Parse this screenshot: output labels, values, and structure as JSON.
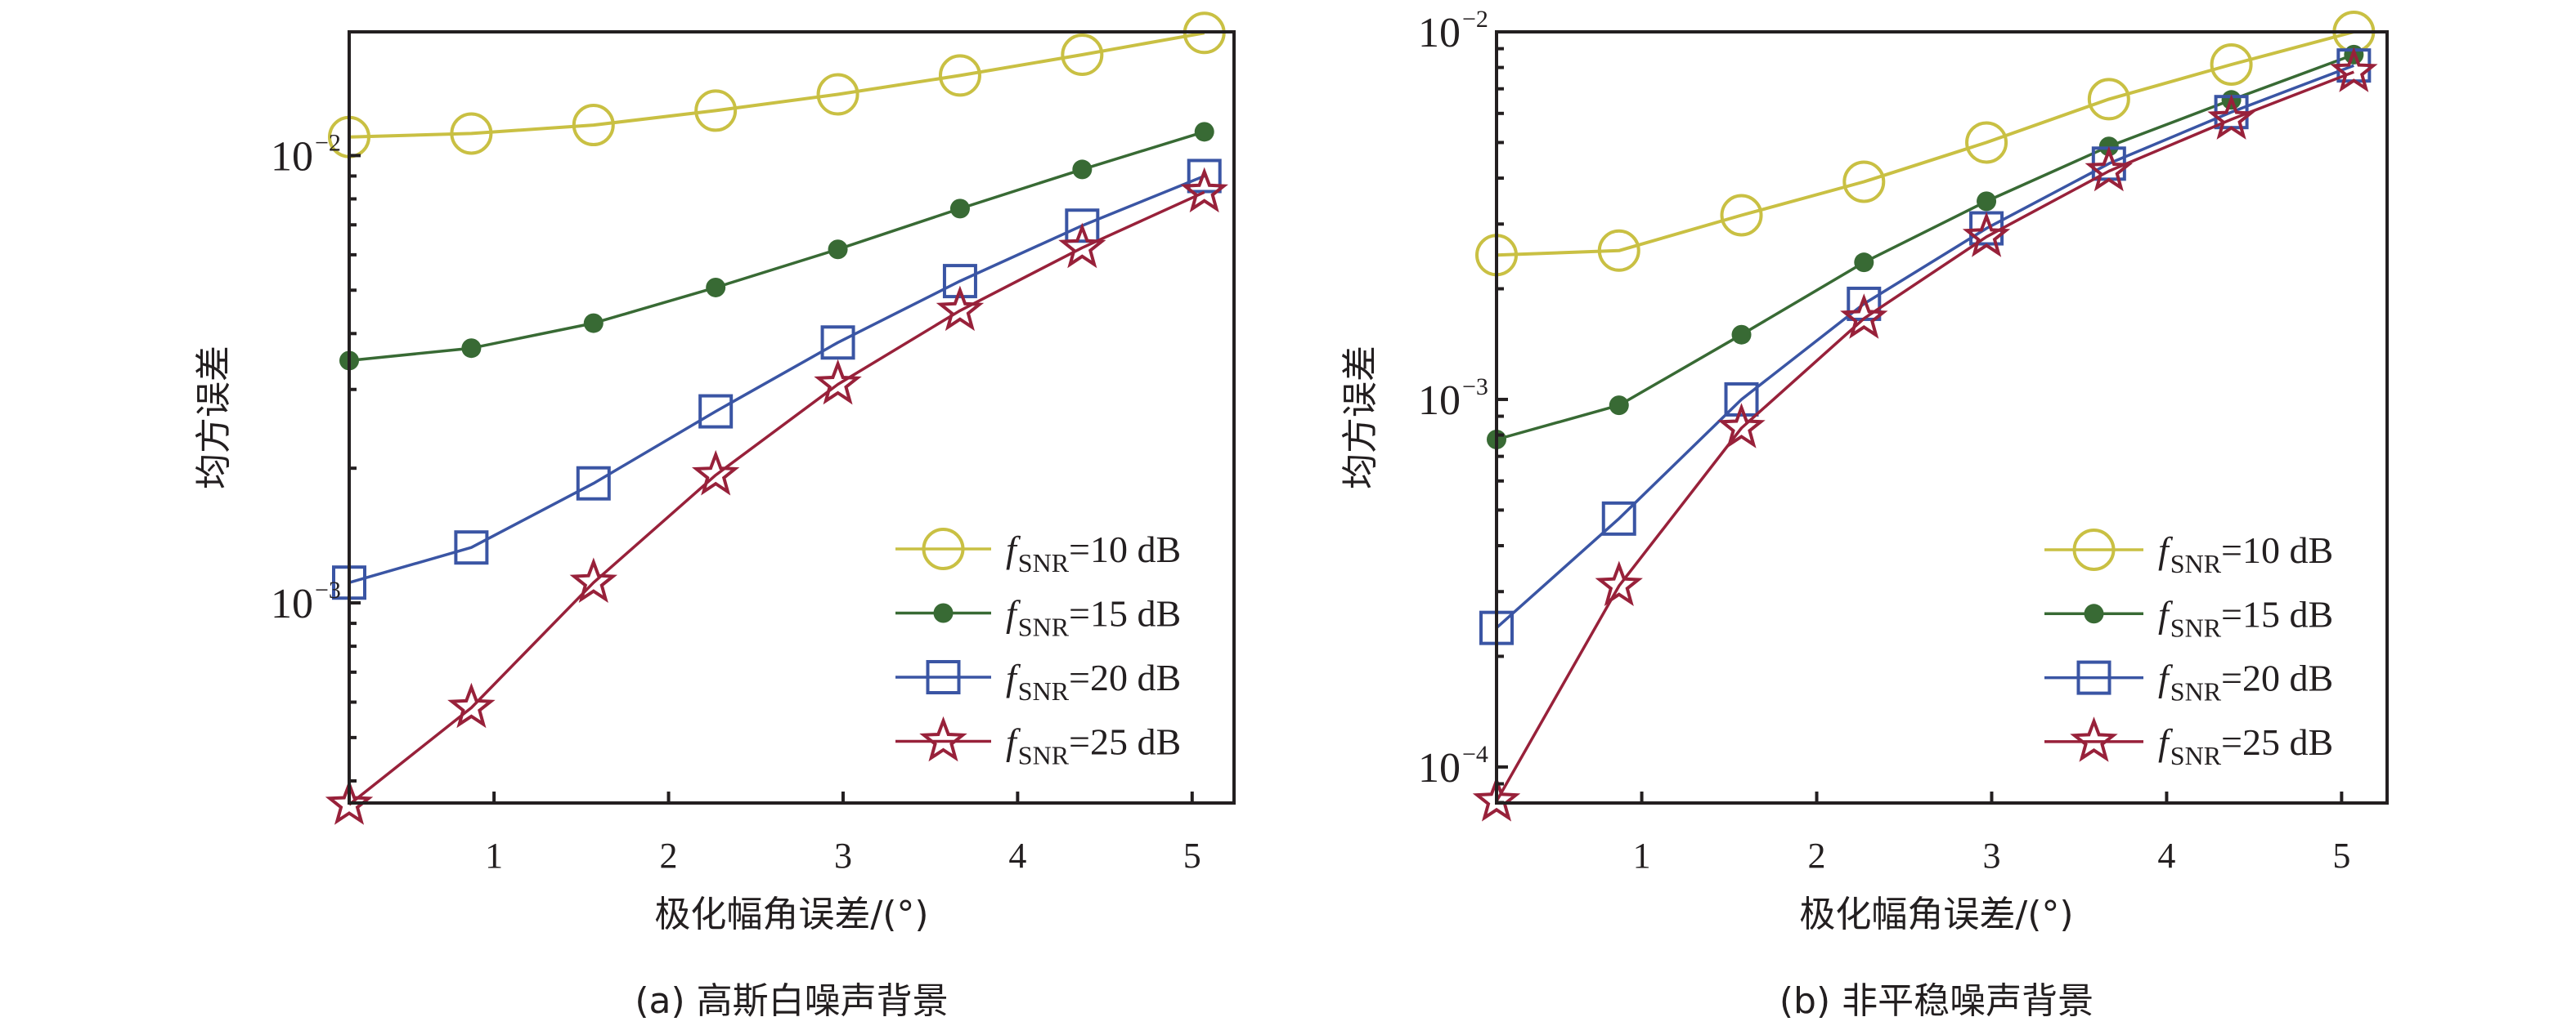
{
  "colors": {
    "snr10": "#c9c043",
    "snr15": "#386a34",
    "snr20": "#3a55a4",
    "snr25": "#98213a",
    "axis": "#231f20"
  },
  "chart_data": [
    {
      "type": "line",
      "caption": "(a) 高斯白噪声背景",
      "xlabel": "极化幅角误差/(°)",
      "ylabel": "均方误差",
      "yscale": "log",
      "xlim": [
        0.17,
        5.24
      ],
      "ylim": [
        0.000357,
        0.0189
      ],
      "xticks": [
        1,
        2,
        3,
        4,
        5
      ],
      "xtick_labels": [
        "1",
        "2",
        "3",
        "4",
        "5"
      ],
      "yticks": [
        0.01,
        0.001
      ],
      "ytick_labels": [
        {
          "base": "10",
          "exp": "−2"
        },
        {
          "base": "10",
          "exp": "−3"
        }
      ],
      "grid": false,
      "legend_position": "bottom-right",
      "x": [
        0.17,
        0.87,
        1.57,
        2.27,
        2.97,
        3.67,
        4.37,
        5.07
      ],
      "series": [
        {
          "name": "fSNR=10 dB",
          "sym": "f",
          "sub": "SNR",
          "rest": "=10 dB",
          "marker": "circle",
          "color_key": "snr10",
          "values": [
            0.011,
            0.0112,
            0.0117,
            0.0126,
            0.0137,
            0.0151,
            0.0168,
            0.0188
          ]
        },
        {
          "name": "fSNR=15 dB",
          "sym": "f",
          "sub": "SNR",
          "rest": "=15 dB",
          "marker": "dot",
          "color_key": "snr15",
          "values": [
            0.00348,
            0.00371,
            0.00422,
            0.00507,
            0.00617,
            0.00761,
            0.00931,
            0.0113
          ]
        },
        {
          "name": "fSNR=20 dB",
          "sym": "f",
          "sub": "SNR",
          "rest": "=20 dB",
          "marker": "square",
          "color_key": "snr20",
          "values": [
            0.00111,
            0.00133,
            0.00185,
            0.00268,
            0.00382,
            0.00524,
            0.00697,
            0.009
          ]
        },
        {
          "name": "fSNR=25 dB",
          "sym": "f",
          "sub": "SNR",
          "rest": "=25 dB",
          "marker": "star",
          "color_key": "snr25",
          "values": [
            0.000354,
            0.000583,
            0.00111,
            0.00193,
            0.00308,
            0.0045,
            0.00622,
            0.00828
          ]
        }
      ]
    },
    {
      "type": "line",
      "caption": "(b) 非平稳噪声背景",
      "xlabel": "极化幅角误差/(°)",
      "ylabel": "均方误差",
      "yscale": "log",
      "xlim": [
        0.17,
        5.26
      ],
      "ylim": [
        7.98e-05,
        0.01
      ],
      "xticks": [
        1,
        2,
        3,
        4,
        5
      ],
      "xtick_labels": [
        "1",
        "2",
        "3",
        "4",
        "5"
      ],
      "yticks": [
        0.01,
        0.001,
        0.0001
      ],
      "ytick_labels": [
        {
          "base": "10",
          "exp": "−2"
        },
        {
          "base": "10",
          "exp": "−3"
        },
        {
          "base": "10",
          "exp": "−4"
        }
      ],
      "grid": false,
      "legend_position": "bottom-right",
      "x": [
        0.17,
        0.87,
        1.57,
        2.27,
        2.97,
        3.67,
        4.37,
        5.07
      ],
      "series": [
        {
          "name": "fSNR=10 dB",
          "sym": "f",
          "sub": "SNR",
          "rest": "=10 dB",
          "marker": "circle",
          "color_key": "snr10",
          "values": [
            0.00247,
            0.00254,
            0.00317,
            0.00391,
            0.005,
            0.00656,
            0.00815,
            0.01
          ]
        },
        {
          "name": "fSNR=15 dB",
          "sym": "f",
          "sub": "SNR",
          "rest": "=15 dB",
          "marker": "dot",
          "color_key": "snr15",
          "values": [
            0.000778,
            0.000964,
            0.0015,
            0.00236,
            0.00346,
            0.00488,
            0.00653,
            0.00867
          ]
        },
        {
          "name": "fSNR=20 dB",
          "sym": "f",
          "sub": "SNR",
          "rest": "=20 dB",
          "marker": "square",
          "color_key": "snr20",
          "values": [
            0.000239,
            0.000474,
            0.001,
            0.00182,
            0.00292,
            0.00438,
            0.00605,
            0.0081
          ]
        },
        {
          "name": "fSNR=25 dB",
          "sym": "f",
          "sub": "SNR",
          "rest": "=25 dB",
          "marker": "star",
          "color_key": "snr25",
          "values": [
            8.07e-05,
            0.000311,
            0.000836,
            0.00166,
            0.00277,
            0.00418,
            0.00578,
            0.00778
          ]
        }
      ]
    }
  ]
}
